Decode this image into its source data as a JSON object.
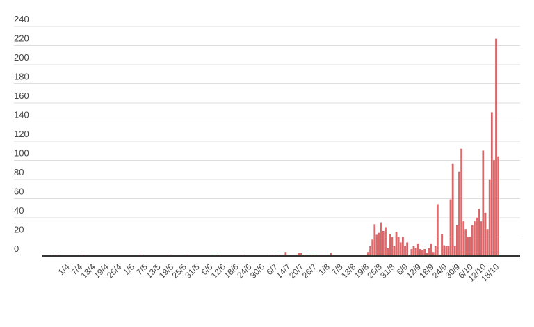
{
  "chart_data": {
    "type": "bar",
    "title": "",
    "xlabel": "",
    "ylabel": "",
    "ylim": [
      0,
      240
    ],
    "yticks": [
      0,
      20,
      40,
      60,
      80,
      100,
      120,
      140,
      160,
      180,
      200,
      220,
      240
    ],
    "grid": true,
    "legend": "none",
    "bar_color": "#e06a6c",
    "tick_every": 6,
    "tick_labels": [
      "1/4",
      "7/4",
      "13/4",
      "19/4",
      "25/4",
      "1/5",
      "7/5",
      "13/5",
      "19/5",
      "25/5",
      "31/5",
      "6/6",
      "12/6",
      "18/6",
      "24/6",
      "30/6",
      "6/7",
      "14/7",
      "20/7",
      "26/7",
      "1/8",
      "7/8",
      "13/8",
      "19/8",
      "25/8",
      "31/8",
      "6/9",
      "12/9",
      "18/9",
      "24/9",
      "30/9",
      "6/10",
      "12/10",
      "18/10"
    ],
    "values": [
      1,
      0,
      0,
      0,
      0,
      0,
      0,
      0,
      0,
      0,
      0,
      0,
      0,
      1,
      0,
      0,
      0,
      0,
      0,
      0,
      0,
      0,
      0,
      0,
      0,
      0,
      0,
      0,
      0,
      0,
      0,
      0,
      0,
      0,
      0,
      0,
      0,
      0,
      0,
      1,
      0,
      0,
      0,
      0,
      0,
      0,
      0,
      0,
      0,
      0,
      0,
      0,
      1,
      0,
      0,
      0,
      0,
      0,
      0,
      0,
      0,
      1,
      0,
      0,
      0,
      0,
      0,
      0,
      0,
      0,
      0,
      0,
      0,
      0,
      1,
      0,
      1,
      0,
      0,
      0,
      0,
      0,
      0,
      0,
      0,
      0,
      1,
      0,
      0,
      0,
      0,
      0,
      0,
      0,
      0,
      0,
      0,
      0,
      0,
      0,
      1,
      0,
      0,
      1,
      0,
      0,
      4,
      0,
      0,
      0,
      0,
      0,
      3,
      3,
      1,
      1,
      0,
      0,
      1,
      1,
      0,
      0,
      0,
      0,
      0,
      0,
      0,
      3,
      0,
      0,
      0,
      0,
      0,
      0,
      0,
      0,
      0,
      0,
      0,
      0,
      0,
      0,
      0,
      0,
      4,
      10,
      17,
      33,
      22,
      24,
      35,
      26,
      30,
      8,
      23,
      20,
      10,
      25,
      20,
      14,
      20,
      10,
      14,
      1,
      7,
      10,
      8,
      13,
      7,
      6,
      7,
      3,
      8,
      13,
      4,
      10,
      54,
      1,
      23,
      11,
      10,
      10,
      59,
      96,
      10,
      32,
      88,
      112,
      36,
      28,
      20,
      20,
      32,
      36,
      40,
      49,
      36,
      110,
      45,
      28,
      80,
      150,
      100,
      227,
      104
    ]
  }
}
